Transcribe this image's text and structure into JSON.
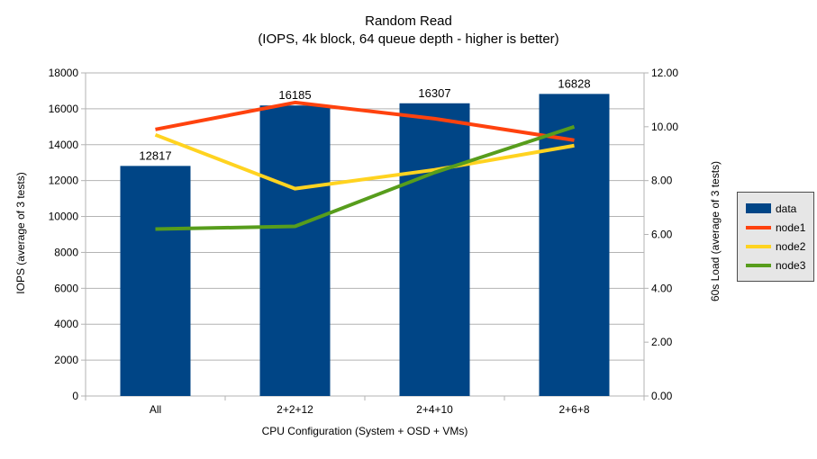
{
  "chart_data": {
    "type": "bar",
    "title": "Random Read",
    "subtitle": "(IOPS, 4k block, 64 queue depth - higher is better)",
    "categories": [
      "All",
      "2+2+12",
      "2+4+10",
      "2+6+8"
    ],
    "bar_series": {
      "name": "data",
      "color": "#004586",
      "axis": "left",
      "values": [
        12817,
        16185,
        16307,
        16828
      ],
      "labels": [
        "12817",
        "16185",
        "16307",
        "16828"
      ]
    },
    "line_series": [
      {
        "name": "node1",
        "color": "#ff420e",
        "axis": "right",
        "values": [
          9.9,
          10.9,
          10.3,
          9.5
        ]
      },
      {
        "name": "node2",
        "color": "#ffd320",
        "axis": "right",
        "values": [
          9.7,
          7.7,
          8.4,
          9.3
        ]
      },
      {
        "name": "node3",
        "color": "#579d1c",
        "axis": "right",
        "values": [
          6.2,
          6.3,
          8.3,
          10.0
        ]
      }
    ],
    "left_axis": {
      "label": "IOPS (average of 3 tests)",
      "min": 0,
      "max": 18000,
      "step": 2000,
      "ticks": [
        "0",
        "2000",
        "4000",
        "6000",
        "8000",
        "10000",
        "12000",
        "14000",
        "16000",
        "18000"
      ]
    },
    "right_axis": {
      "label": "60s Load (average of 3 tests)",
      "min": 0,
      "max": 12,
      "step": 2,
      "ticks": [
        "0.00",
        "2.00",
        "4.00",
        "6.00",
        "8.00",
        "10.00",
        "12.00"
      ]
    },
    "x_axis": {
      "label": "CPU Configuration (System + OSD + VMs)"
    },
    "grid": true,
    "legend_position": "right",
    "legend": {
      "items": [
        {
          "label": "data",
          "type": "rect",
          "color": "#004586"
        },
        {
          "label": "node1",
          "type": "line",
          "color": "#ff420e"
        },
        {
          "label": "node2",
          "type": "line",
          "color": "#ffd320"
        },
        {
          "label": "node3",
          "type": "line",
          "color": "#579d1c"
        }
      ]
    },
    "style": {
      "grid_color": "#b3b3b3",
      "axis_color": "#b3b3b3",
      "legend_bg": "#e6e6e6",
      "legend_border": "#4d4d4d"
    }
  }
}
